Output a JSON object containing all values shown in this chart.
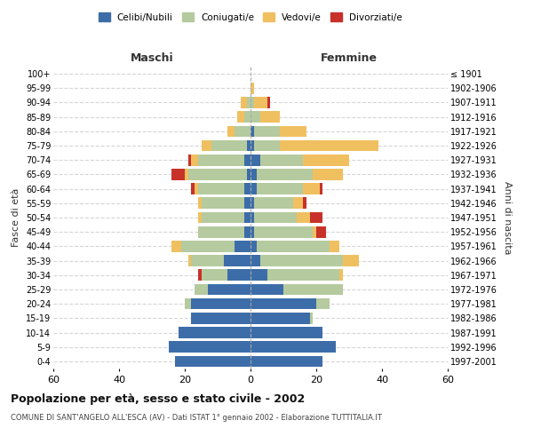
{
  "age_groups": [
    "0-4",
    "5-9",
    "10-14",
    "15-19",
    "20-24",
    "25-29",
    "30-34",
    "35-39",
    "40-44",
    "45-49",
    "50-54",
    "55-59",
    "60-64",
    "65-69",
    "70-74",
    "75-79",
    "80-84",
    "85-89",
    "90-94",
    "95-99",
    "100+"
  ],
  "birth_years": [
    "1997-2001",
    "1992-1996",
    "1987-1991",
    "1982-1986",
    "1977-1981",
    "1972-1976",
    "1967-1971",
    "1962-1966",
    "1957-1961",
    "1952-1956",
    "1947-1951",
    "1942-1946",
    "1937-1941",
    "1932-1936",
    "1927-1931",
    "1922-1926",
    "1917-1921",
    "1912-1916",
    "1907-1911",
    "1902-1906",
    "≤ 1901"
  ],
  "maschi": {
    "celibi": [
      23,
      25,
      22,
      18,
      18,
      13,
      7,
      8,
      5,
      2,
      2,
      2,
      2,
      1,
      2,
      1,
      0,
      0,
      0,
      0,
      0
    ],
    "coniugati": [
      0,
      0,
      0,
      0,
      2,
      4,
      8,
      10,
      16,
      14,
      13,
      13,
      14,
      18,
      14,
      11,
      5,
      2,
      1,
      0,
      0
    ],
    "vedovi": [
      0,
      0,
      0,
      0,
      0,
      0,
      0,
      1,
      3,
      0,
      1,
      1,
      1,
      1,
      2,
      3,
      2,
      2,
      2,
      0,
      0
    ],
    "divorziati": [
      0,
      0,
      0,
      0,
      0,
      0,
      1,
      0,
      0,
      0,
      0,
      0,
      1,
      4,
      1,
      0,
      0,
      0,
      0,
      0,
      0
    ]
  },
  "femmine": {
    "nubili": [
      22,
      26,
      22,
      18,
      20,
      10,
      5,
      3,
      2,
      1,
      1,
      1,
      2,
      2,
      3,
      1,
      1,
      0,
      0,
      0,
      0
    ],
    "coniugate": [
      0,
      0,
      0,
      1,
      4,
      18,
      22,
      25,
      22,
      18,
      13,
      12,
      14,
      17,
      13,
      8,
      8,
      3,
      1,
      0,
      0
    ],
    "vedove": [
      0,
      0,
      0,
      0,
      0,
      0,
      1,
      5,
      3,
      1,
      4,
      3,
      5,
      9,
      14,
      30,
      8,
      6,
      4,
      1,
      0
    ],
    "divorziate": [
      0,
      0,
      0,
      0,
      0,
      0,
      0,
      0,
      0,
      3,
      4,
      1,
      1,
      0,
      0,
      0,
      0,
      0,
      1,
      0,
      0
    ]
  },
  "colors": {
    "celibi_nubili": "#3d6da8",
    "coniugati": "#b5ca9e",
    "vedovi": "#f0c060",
    "divorziati": "#c8302a"
  },
  "xlim": 60,
  "title": "Popolazione per età, sesso e stato civile - 2002",
  "subtitle": "COMUNE DI SANT'ANGELO ALL'ESCA (AV) - Dati ISTAT 1° gennaio 2002 - Elaborazione TUTTITALIA.IT",
  "xlabel_left": "Maschi",
  "xlabel_right": "Femmine",
  "ylabel_left": "Fasce di età",
  "ylabel_right": "Anni di nascita",
  "legend_labels": [
    "Celibi/Nubili",
    "Coniugati/e",
    "Vedovi/e",
    "Divorziati/e"
  ],
  "background_color": "#ffffff",
  "grid_color": "#cccccc"
}
